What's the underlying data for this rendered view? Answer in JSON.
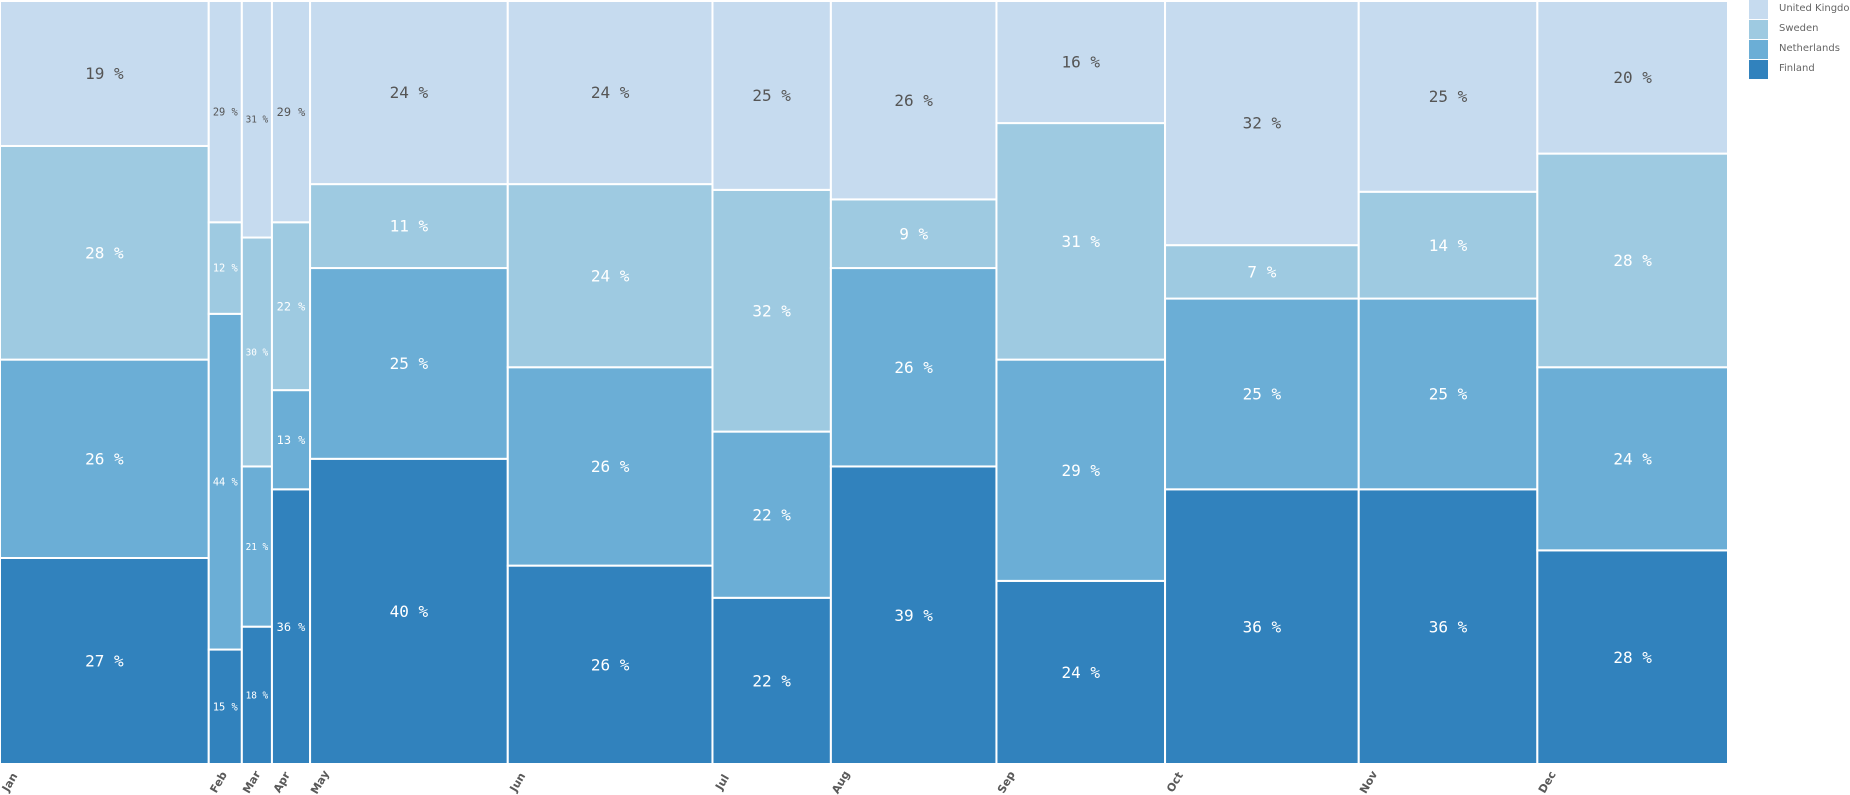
{
  "chart_data": {
    "type": "bar",
    "subtype": "marimekko",
    "categories": [
      "Jan",
      "Feb",
      "Mar",
      "Apr",
      "May",
      "Jun",
      "Jul",
      "Aug",
      "Sep",
      "Oct",
      "Nov",
      "Dec"
    ],
    "category_widths": [
      208,
      33,
      30,
      38,
      197,
      204,
      118,
      165,
      168,
      193,
      178,
      190
    ],
    "series": [
      {
        "name": "Finland",
        "color": "#3182bd",
        "values": [
          27,
          15,
          18,
          36,
          40,
          26,
          22,
          39,
          24,
          36,
          36,
          28
        ]
      },
      {
        "name": "Netherlands",
        "color": "#6baed6",
        "values": [
          26,
          44,
          21,
          13,
          25,
          26,
          22,
          26,
          29,
          25,
          25,
          24
        ]
      },
      {
        "name": "Sweden",
        "color": "#9ecae1",
        "values": [
          28,
          12,
          30,
          22,
          11,
          24,
          32,
          9,
          31,
          7,
          14,
          28
        ]
      },
      {
        "name": "United Kingdom",
        "color": "#c6dbef",
        "values": [
          19,
          29,
          31,
          29,
          24,
          24,
          25,
          26,
          16,
          32,
          25,
          20
        ]
      }
    ],
    "value_suffix": " %",
    "legend_position": "right",
    "grid": false
  }
}
